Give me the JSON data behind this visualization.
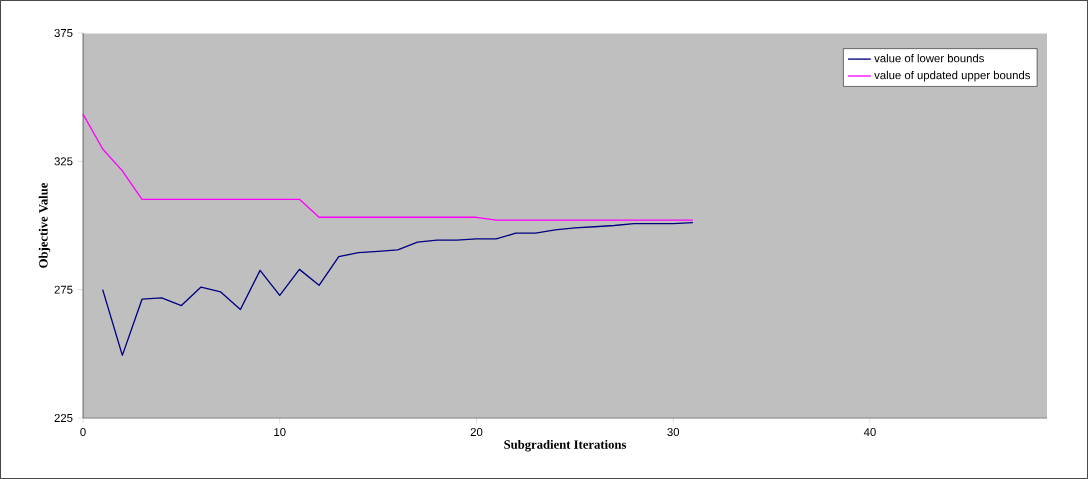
{
  "chart_data": {
    "type": "line",
    "xlabel": "Subgradient Iterations",
    "ylabel": "Objective Value",
    "xlim": [
      0,
      49
    ],
    "xticks": [
      0,
      10,
      20,
      30,
      40
    ],
    "ylim": [
      225,
      375
    ],
    "yticks": [
      225,
      275,
      325,
      375
    ],
    "grid": false,
    "legend": "top right",
    "marker": "none",
    "line_style": "solid",
    "series": [
      {
        "name": "value of lower bounds",
        "color": "#000080",
        "x": [
          1,
          2,
          3,
          4,
          5,
          6,
          7,
          8,
          9,
          10,
          11,
          12,
          13,
          14,
          15,
          16,
          17,
          18,
          19,
          20,
          21,
          22,
          23,
          24,
          25,
          26,
          27,
          28,
          29,
          30,
          31
        ],
        "values": [
          275,
          249.4,
          271.3,
          271.8,
          268.8,
          276,
          274.1,
          267.3,
          282.5,
          272.8,
          282.9,
          276.7,
          287.9,
          289.4,
          289.9,
          290.5,
          293.5,
          294.3,
          294.3,
          294.8,
          294.8,
          297,
          297,
          298.3,
          299.1,
          299.5,
          300,
          300.7,
          300.7,
          300.7,
          301.1
        ]
      },
      {
        "name": "value of updated upper bounds",
        "color": "#ff00ff",
        "x": [
          0,
          1,
          2,
          3,
          4,
          5,
          6,
          7,
          8,
          9,
          10,
          11,
          12,
          13,
          14,
          15,
          16,
          17,
          18,
          19,
          20,
          21,
          22,
          23,
          24,
          25,
          26,
          27,
          28,
          29,
          30,
          31
        ],
        "values": [
          343.4,
          329.8,
          321.3,
          310.2,
          310.2,
          310.2,
          310.2,
          310.2,
          310.2,
          310.2,
          310.2,
          310.2,
          303.2,
          303.2,
          303.2,
          303.2,
          303.2,
          303.2,
          303.2,
          303.2,
          303.2,
          302.1,
          302.1,
          302.1,
          302.1,
          302.1,
          302.1,
          302.1,
          302.1,
          302.1,
          302.1,
          302.1
        ]
      }
    ]
  }
}
